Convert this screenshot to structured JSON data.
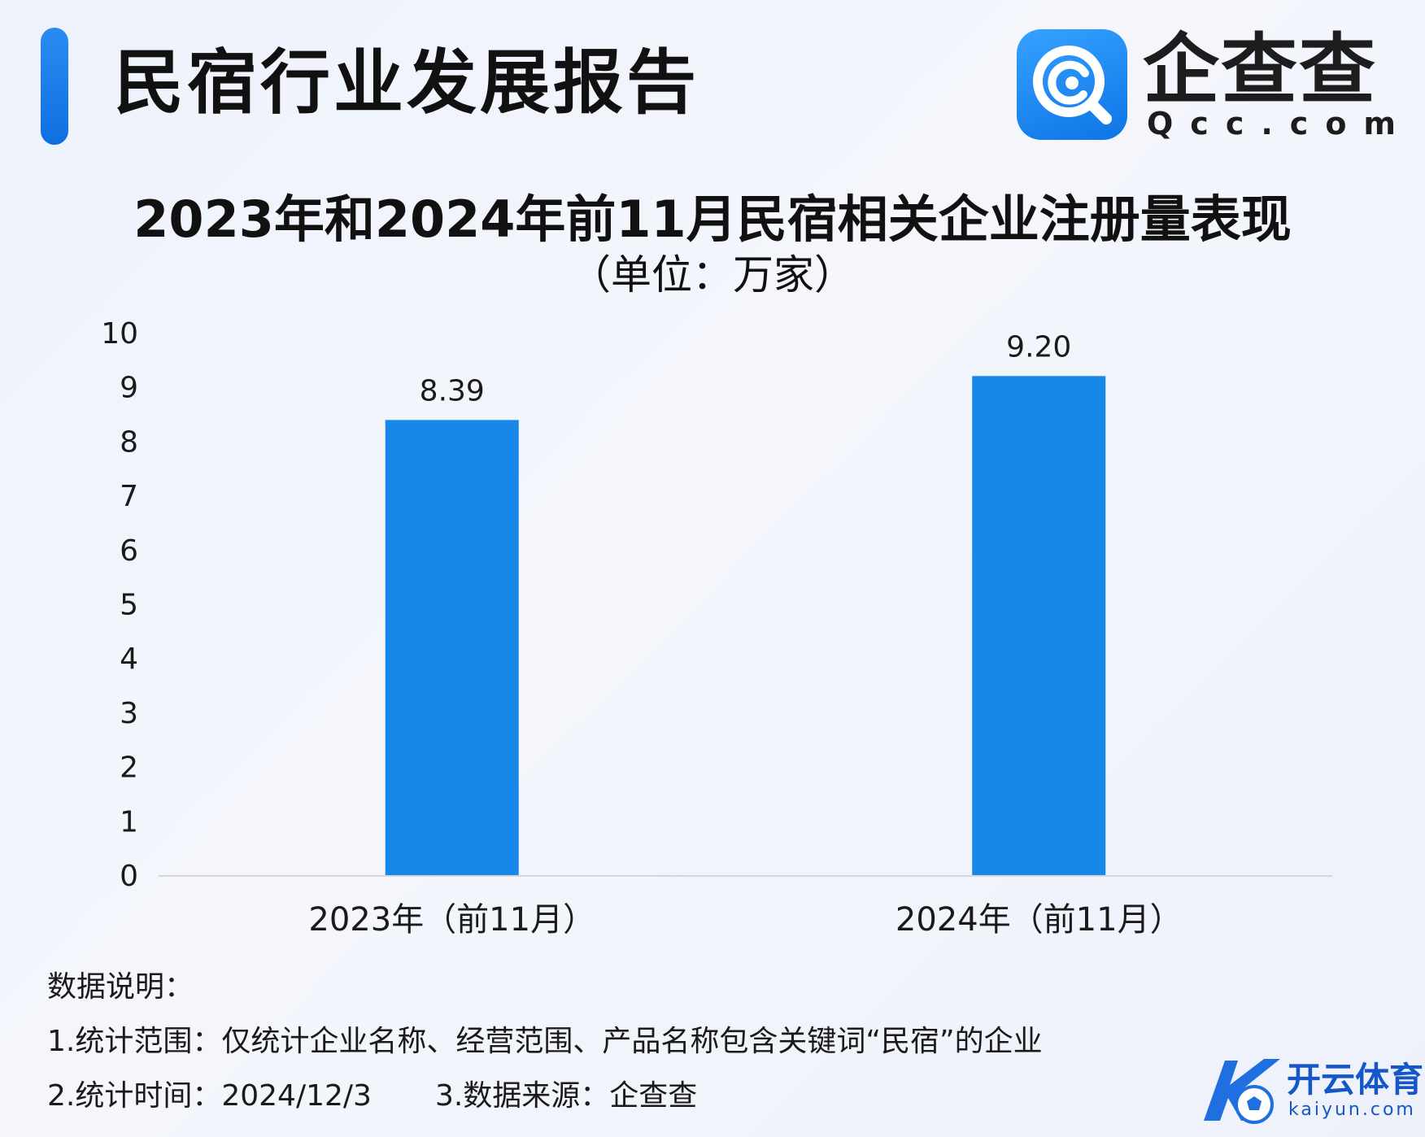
{
  "header": {
    "report_title": "民宿行业发展报告",
    "accent_color": "#1a82ee"
  },
  "brand": {
    "name": "企查查",
    "domain": "Qcc.com",
    "logo_icon": "qcc-magnifier-logo-icon"
  },
  "watermark": {
    "name": "开云体育",
    "domain": "kaiyun.com",
    "logo_icon": "k-soccer-ball-logo-icon"
  },
  "chart_data": {
    "type": "bar",
    "title": "2023年和2024年前11月民宿相关企业注册量表现",
    "subtitle": "（单位：万家）",
    "categories": [
      "2023年（前11月）",
      "2024年（前11月）"
    ],
    "values": [
      8.39,
      9.2
    ],
    "value_labels": [
      "8.39",
      "9.20"
    ],
    "ylim": [
      0,
      10
    ],
    "yticks": [
      "0",
      "1",
      "2",
      "3",
      "4",
      "5",
      "6",
      "7",
      "8",
      "9",
      "10"
    ],
    "grid": false,
    "legend": "none",
    "bar_color": "#1787e8"
  },
  "notes": {
    "heading": "数据说明：",
    "scope": "1.统计范围：仅统计企业名称、经营范围、产品名称包含关键词“民宿”的企业",
    "time": "2.统计时间：2024/12/3",
    "source": "3.数据来源：企查查"
  }
}
